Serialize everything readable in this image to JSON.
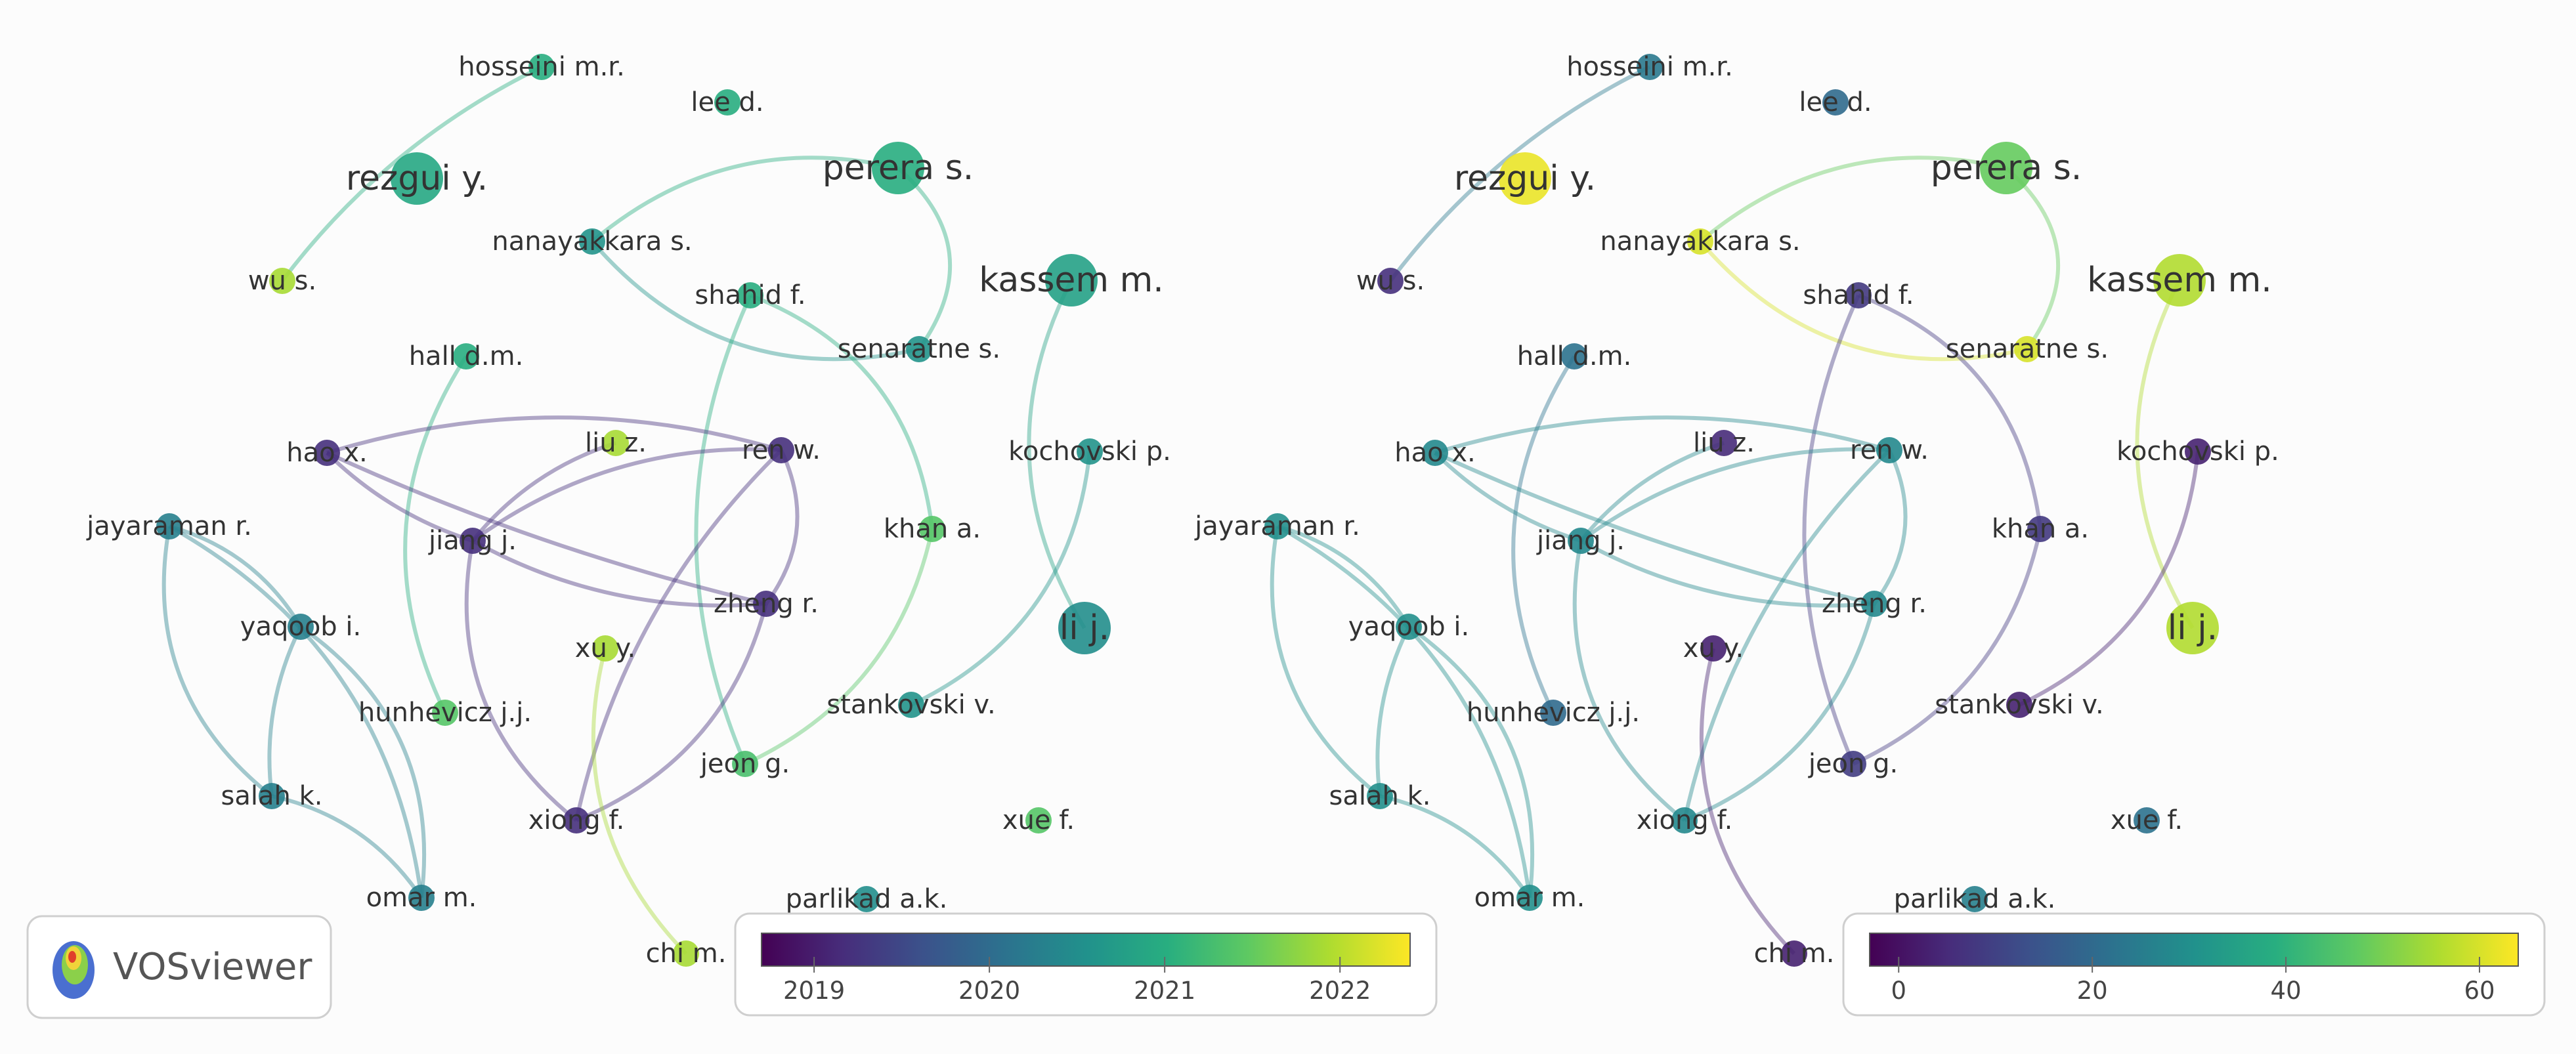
{
  "app": {
    "logo_text": "VOSviewer",
    "logo_icon": "vosviewer-logo-icon"
  },
  "panels": [
    {
      "id": "overlay-year",
      "legend": {
        "min": 2018.7,
        "max": 2022.4,
        "ticks": [
          "2019",
          "2020",
          "2021",
          "2022"
        ],
        "tick_values": [
          2019,
          2020,
          2021,
          2022
        ]
      },
      "nodes": [
        {
          "id": "hosseini",
          "label": "hosseini m.r.",
          "weight": 1,
          "value": 2021.0
        },
        {
          "id": "lee",
          "label": "lee d.",
          "weight": 1,
          "value": 2021.0
        },
        {
          "id": "rezgui",
          "label": "rezgui y.",
          "weight": 3,
          "value": 2020.9
        },
        {
          "id": "perera",
          "label": "perera s.",
          "weight": 3,
          "value": 2021.0
        },
        {
          "id": "nanayakkara",
          "label": "nanayakkara s.",
          "weight": 1,
          "value": 2020.6
        },
        {
          "id": "kassem",
          "label": "kassem m.",
          "weight": 3,
          "value": 2020.8
        },
        {
          "id": "wu",
          "label": "wu s.",
          "weight": 1,
          "value": 2021.9
        },
        {
          "id": "shahid",
          "label": "shahid f.",
          "weight": 1,
          "value": 2021.0
        },
        {
          "id": "senaratne",
          "label": "senaratne s.",
          "weight": 1,
          "value": 2020.6
        },
        {
          "id": "hall",
          "label": "hall d.m.",
          "weight": 1,
          "value": 2021.0
        },
        {
          "id": "hao",
          "label": "hao x.",
          "weight": 1,
          "value": 2019.2
        },
        {
          "id": "liu",
          "label": "liu z.",
          "weight": 1,
          "value": 2021.9
        },
        {
          "id": "ren",
          "label": "ren w.",
          "weight": 1,
          "value": 2019.2
        },
        {
          "id": "kochovski",
          "label": "kochovski p.",
          "weight": 1,
          "value": 2020.6
        },
        {
          "id": "jayaraman",
          "label": "jayaraman r.",
          "weight": 1,
          "value": 2020.3
        },
        {
          "id": "jiang",
          "label": "jiang j.",
          "weight": 1,
          "value": 2019.2
        },
        {
          "id": "khan",
          "label": "khan a.",
          "weight": 1,
          "value": 2021.4
        },
        {
          "id": "zheng",
          "label": "zheng r.",
          "weight": 1,
          "value": 2019.2
        },
        {
          "id": "yaqoob",
          "label": "yaqoob i.",
          "weight": 1,
          "value": 2020.3
        },
        {
          "id": "li",
          "label": "li j.",
          "weight": 3,
          "value": 2020.5
        },
        {
          "id": "xu",
          "label": "xu y.",
          "weight": 1,
          "value": 2021.9
        },
        {
          "id": "hunhevicz",
          "label": "hunhevicz j.j.",
          "weight": 1,
          "value": 2021.4
        },
        {
          "id": "stankovski",
          "label": "stankovski v.",
          "weight": 1,
          "value": 2020.6
        },
        {
          "id": "jeon",
          "label": "jeon g.",
          "weight": 1,
          "value": 2021.3
        },
        {
          "id": "salah",
          "label": "salah k.",
          "weight": 1,
          "value": 2020.3
        },
        {
          "id": "xiong",
          "label": "xiong f.",
          "weight": 1,
          "value": 2019.2
        },
        {
          "id": "xue",
          "label": "xue f.",
          "weight": 1,
          "value": 2021.4
        },
        {
          "id": "omar",
          "label": "omar m.",
          "weight": 1,
          "value": 2020.3
        },
        {
          "id": "parlikad",
          "label": "parlikad a.k.",
          "weight": 1,
          "value": 2020.5
        },
        {
          "id": "chi",
          "label": "chi m.",
          "weight": 1,
          "value": 2021.9
        }
      ]
    },
    {
      "id": "overlay-citations",
      "legend": {
        "min": -3,
        "max": 64,
        "ticks": [
          "0",
          "20",
          "40",
          "60"
        ],
        "tick_values": [
          0,
          20,
          40,
          60
        ]
      },
      "nodes": [
        {
          "id": "hosseini",
          "label": "hosseini m.r.",
          "weight": 1,
          "value": 24
        },
        {
          "id": "lee",
          "label": "lee d.",
          "weight": 1,
          "value": 20
        },
        {
          "id": "rezgui",
          "label": "rezgui y.",
          "weight": 3,
          "value": 62
        },
        {
          "id": "perera",
          "label": "perera s.",
          "weight": 3,
          "value": 48
        },
        {
          "id": "nanayakkara",
          "label": "nanayakkara s.",
          "weight": 1,
          "value": 60
        },
        {
          "id": "kassem",
          "label": "kassem m.",
          "weight": 3,
          "value": 56
        },
        {
          "id": "wu",
          "label": "wu s.",
          "weight": 1,
          "value": 6
        },
        {
          "id": "shahid",
          "label": "shahid f.",
          "weight": 1,
          "value": 8
        },
        {
          "id": "senaratne",
          "label": "senaratne s.",
          "weight": 1,
          "value": 60
        },
        {
          "id": "hall",
          "label": "hall d.m.",
          "weight": 1,
          "value": 22
        },
        {
          "id": "hao",
          "label": "hao x.",
          "weight": 1,
          "value": 28
        },
        {
          "id": "liu",
          "label": "liu z.",
          "weight": 1,
          "value": 5
        },
        {
          "id": "ren",
          "label": "ren w.",
          "weight": 1,
          "value": 28
        },
        {
          "id": "kochovski",
          "label": "kochovski p.",
          "weight": 1,
          "value": 3
        },
        {
          "id": "jayaraman",
          "label": "jayaraman r.",
          "weight": 1,
          "value": 30
        },
        {
          "id": "jiang",
          "label": "jiang j.",
          "weight": 1,
          "value": 28
        },
        {
          "id": "khan",
          "label": "khan a.",
          "weight": 1,
          "value": 8
        },
        {
          "id": "zheng",
          "label": "zheng r.",
          "weight": 1,
          "value": 28
        },
        {
          "id": "yaqoob",
          "label": "yaqoob i.",
          "weight": 1,
          "value": 30
        },
        {
          "id": "li",
          "label": "li j.",
          "weight": 3,
          "value": 56
        },
        {
          "id": "xu",
          "label": "xu y.",
          "weight": 1,
          "value": 3
        },
        {
          "id": "hunhevicz",
          "label": "hunhevicz j.j.",
          "weight": 1,
          "value": 20
        },
        {
          "id": "stankovski",
          "label": "stankovski v.",
          "weight": 1,
          "value": 3
        },
        {
          "id": "jeon",
          "label": "jeon g.",
          "weight": 1,
          "value": 9
        },
        {
          "id": "salah",
          "label": "salah k.",
          "weight": 1,
          "value": 30
        },
        {
          "id": "xiong",
          "label": "xiong f.",
          "weight": 1,
          "value": 28
        },
        {
          "id": "xue",
          "label": "xue f.",
          "weight": 1,
          "value": 22
        },
        {
          "id": "omar",
          "label": "omar m.",
          "weight": 1,
          "value": 30
        },
        {
          "id": "parlikad",
          "label": "parlikad a.k.",
          "weight": 1,
          "value": 26
        },
        {
          "id": "chi",
          "label": "chi m.",
          "weight": 1,
          "value": 3
        }
      ]
    }
  ],
  "links": [
    [
      "hosseini",
      "wu"
    ],
    [
      "perera",
      "nanayakkara"
    ],
    [
      "perera",
      "senaratne"
    ],
    [
      "nanayakkara",
      "senaratne"
    ],
    [
      "shahid",
      "jeon"
    ],
    [
      "shahid",
      "khan"
    ],
    [
      "khan",
      "jeon"
    ],
    [
      "kassem",
      "li"
    ],
    [
      "kochovski",
      "stankovski"
    ],
    [
      "hall",
      "hunhevicz"
    ],
    [
      "hao",
      "jiang"
    ],
    [
      "hao",
      "ren"
    ],
    [
      "hao",
      "zheng"
    ],
    [
      "jiang",
      "liu"
    ],
    [
      "jiang",
      "ren"
    ],
    [
      "jiang",
      "zheng"
    ],
    [
      "jiang",
      "xiong"
    ],
    [
      "ren",
      "zheng"
    ],
    [
      "ren",
      "xiong"
    ],
    [
      "zheng",
      "xiong"
    ],
    [
      "xu",
      "chi"
    ],
    [
      "jayaraman",
      "yaqoob"
    ],
    [
      "jayaraman",
      "salah"
    ],
    [
      "jayaraman",
      "omar"
    ],
    [
      "yaqoob",
      "salah"
    ],
    [
      "yaqoob",
      "omar"
    ],
    [
      "salah",
      "omar"
    ]
  ],
  "colormap": [
    "#440154",
    "#472d7b",
    "#3b528b",
    "#2c728e",
    "#21918c",
    "#28ae80",
    "#5ec962",
    "#addc30",
    "#fde725"
  ]
}
